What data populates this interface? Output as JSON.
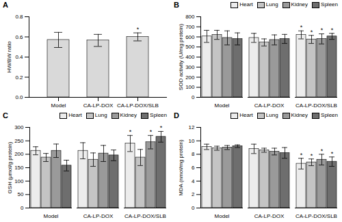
{
  "chart_data": [
    {
      "type": "bar",
      "title": "A",
      "categories": [
        "Model",
        "CA-LP-DOX",
        "CA-LP-DOX/SLB"
      ],
      "values": [
        0.57,
        0.565,
        0.6
      ],
      "errors": [
        0.075,
        0.06,
        0.04
      ],
      "annotations": [
        null,
        null,
        "*"
      ],
      "color": "#d9d9d9",
      "ylabel": "HW/BW ratio",
      "ylim": [
        0,
        0.8
      ],
      "yticks": [
        {
          "value": 0,
          "label": "0.0"
        },
        0.2,
        0.4,
        0.6,
        0.8
      ],
      "grid": false
    },
    {
      "type": "bar",
      "title": "B",
      "categories": [
        "Model",
        "CA-LP-DOX",
        "CA-LP-DOX/SLB"
      ],
      "series": [
        {
          "name": "Heart",
          "color": "#ececec",
          "values": [
            605,
            590,
            620
          ],
          "errors": [
            60,
            45,
            40
          ],
          "annotations": [
            null,
            null,
            "*"
          ]
        },
        {
          "name": "Lung",
          "color": "#c4c4c4",
          "values": [
            620,
            545,
            575
          ],
          "errors": [
            45,
            35,
            40
          ],
          "annotations": [
            null,
            null,
            "*"
          ]
        },
        {
          "name": "Kidney",
          "color": "#9a9a9a",
          "values": [
            590,
            570,
            580
          ],
          "errors": [
            70,
            50,
            50
          ],
          "annotations": [
            null,
            null,
            "*"
          ]
        },
        {
          "name": "Spleen",
          "color": "#6e6e6e",
          "values": [
            580,
            580,
            605
          ],
          "errors": [
            60,
            45,
            30
          ],
          "annotations": [
            null,
            null,
            "*"
          ]
        }
      ],
      "ylabel": "SOD activity (U/mg protein)",
      "legend": "top-right",
      "ylim": [
        0,
        800
      ],
      "yticks": [
        0,
        100,
        200,
        300,
        400,
        500,
        600,
        700,
        800
      ],
      "grid": false
    },
    {
      "type": "bar",
      "title": "C",
      "categories": [
        "Model",
        "CA-LP-DOX",
        "CA-LP-DOX/SLB"
      ],
      "series": [
        {
          "name": "Heart",
          "color": "#ececec",
          "values": [
            213,
            213,
            240
          ],
          "errors": [
            15,
            30,
            30
          ],
          "annotations": [
            null,
            null,
            "*"
          ]
        },
        {
          "name": "Lung",
          "color": "#c4c4c4",
          "values": [
            188,
            180,
            188
          ],
          "errors": [
            15,
            25,
            30
          ],
          "annotations": [
            null,
            null,
            null
          ]
        },
        {
          "name": "Kidney",
          "color": "#9a9a9a",
          "values": [
            213,
            203,
            245
          ],
          "errors": [
            25,
            30,
            25
          ],
          "annotations": [
            null,
            null,
            "*"
          ]
        },
        {
          "name": "Spleen",
          "color": "#6e6e6e",
          "values": [
            158,
            196,
            265
          ],
          "errors": [
            20,
            20,
            20
          ],
          "annotations": [
            null,
            null,
            "*"
          ]
        }
      ],
      "ylabel": "GSH (μmol/g protein)",
      "legend": "top-right",
      "ylim": [
        0,
        300
      ],
      "yticks": [
        0,
        50,
        100,
        150,
        200,
        250,
        300
      ],
      "grid": false
    },
    {
      "type": "bar",
      "title": "D",
      "categories": [
        "Model",
        "CA-LP-DOX",
        "CA-LP-DOX/SLB"
      ],
      "series": [
        {
          "name": "Heart",
          "color": "#ececec",
          "values": [
            9.1,
            8.8,
            6.6
          ],
          "errors": [
            0.4,
            0.7,
            0.8
          ],
          "annotations": [
            null,
            null,
            "*"
          ]
        },
        {
          "name": "Lung",
          "color": "#c4c4c4",
          "values": [
            8.9,
            8.6,
            6.8
          ],
          "errors": [
            0.3,
            0.3,
            0.5
          ],
          "annotations": [
            null,
            null,
            "*"
          ]
        },
        {
          "name": "Kidney",
          "color": "#9a9a9a",
          "values": [
            9.0,
            8.4,
            7.2
          ],
          "errors": [
            0.3,
            0.5,
            0.8
          ],
          "annotations": [
            null,
            null,
            "*"
          ]
        },
        {
          "name": "Spleen",
          "color": "#6e6e6e",
          "values": [
            9.2,
            8.2,
            6.9
          ],
          "errors": [
            0.2,
            0.8,
            0.7
          ],
          "annotations": [
            null,
            null,
            "*"
          ]
        }
      ],
      "ylabel": "MDA (nmol/mg protein)",
      "legend": "top-right",
      "ylim": [
        0,
        12
      ],
      "yticks": [
        0,
        2,
        4,
        6,
        8,
        10,
        12
      ],
      "grid": false
    }
  ]
}
